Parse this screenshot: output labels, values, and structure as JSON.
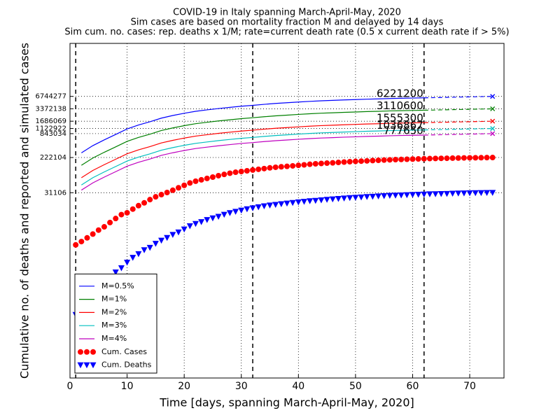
{
  "chart_data": {
    "type": "line",
    "title": [
      "COVID-19 in Italy spanning March-April-May, 2020",
      "Sim cases are based on mortality fraction M and delayed by 14 days",
      "Sim cum. no. cases: rep. deaths x 1/M; rate=current death rate (0.5 x current death rate if > 5%)"
    ],
    "xlabel": "Time [days, spanning March-April-May, 2020]",
    "ylabel": "Cumulative no. of deaths and reported and simulated cases",
    "xlim": [
      0,
      76
    ],
    "xticks": [
      0,
      10,
      20,
      30,
      40,
      50,
      60,
      70
    ],
    "ylim": [
      1,
      130000000
    ],
    "yscale": "log",
    "yticks": [
      31106,
      222104,
      843034,
      1122922,
      1686069,
      3372138,
      6744277
    ],
    "grid": true,
    "legend": "lower left",
    "vlines": [
      1,
      32,
      62
    ],
    "series": [
      {
        "name": "M=0.5%",
        "color": "#0000ff",
        "x": [
          2,
          4,
          6,
          8,
          10,
          12,
          14,
          16,
          18,
          20,
          22,
          24,
          26,
          28,
          30,
          32,
          34,
          36,
          38,
          40,
          42,
          44,
          46,
          48,
          50,
          52,
          54,
          56,
          58,
          60,
          62
        ],
        "values": [
          288200,
          431600,
          595600,
          806400,
          1095200,
          1364000,
          1633000,
          2004600,
          2318200,
          2631000,
          2936200,
          3177400,
          3425400,
          3655800,
          3893600,
          4093000,
          4329000,
          4549000,
          4732000,
          4929600,
          5109800,
          5276800,
          5395400,
          5536400,
          5647200,
          5776800,
          5863000,
          5991600,
          6079000,
          6147800,
          6221200
        ],
        "projection": {
          "x": [
            62,
            74
          ],
          "values": [
            6221200,
            6744277
          ]
        }
      },
      {
        "name": "M=1%",
        "color": "#008000",
        "x": [
          2,
          4,
          6,
          8,
          10,
          12,
          14,
          16,
          18,
          20,
          22,
          24,
          26,
          28,
          30,
          32,
          34,
          36,
          38,
          40,
          42,
          44,
          46,
          48,
          50,
          52,
          54,
          56,
          58,
          60,
          62
        ],
        "values": [
          144100,
          215800,
          297800,
          403200,
          547600,
          682000,
          816500,
          1002300,
          1159100,
          1315500,
          1468100,
          1588700,
          1712700,
          1827900,
          1946800,
          2046500,
          2164500,
          2274500,
          2366000,
          2464800,
          2554900,
          2638400,
          2697700,
          2768200,
          2823600,
          2888400,
          2931500,
          2995800,
          3039500,
          3073900,
          3110600
        ],
        "projection": {
          "x": [
            62,
            74
          ],
          "values": [
            3110600,
            3372138
          ]
        }
      },
      {
        "name": "M=2%",
        "color": "#ff0000",
        "x": [
          2,
          4,
          6,
          8,
          10,
          12,
          14,
          16,
          18,
          20,
          22,
          24,
          26,
          28,
          30,
          32,
          34,
          36,
          38,
          40,
          42,
          44,
          46,
          48,
          50,
          52,
          54,
          56,
          58,
          60,
          62
        ],
        "values": [
          72050,
          107900,
          148900,
          201600,
          273800,
          341000,
          408250,
          501150,
          579550,
          657750,
          734050,
          794350,
          856350,
          913950,
          973400,
          1023250,
          1082250,
          1137250,
          1183000,
          1232400,
          1277450,
          1319200,
          1348850,
          1384100,
          1411800,
          1444200,
          1465750,
          1497900,
          1519750,
          1536950,
          1555300
        ],
        "projection": {
          "x": [
            62,
            74
          ],
          "values": [
            1555300,
            1686069
          ]
        }
      },
      {
        "name": "M=3%",
        "color": "#00bfbf",
        "x": [
          2,
          4,
          6,
          8,
          10,
          12,
          14,
          16,
          18,
          20,
          22,
          24,
          26,
          28,
          30,
          32,
          34,
          36,
          38,
          40,
          42,
          44,
          46,
          48,
          50,
          52,
          54,
          56,
          58,
          60,
          62
        ],
        "values": [
          48033,
          71933,
          99267,
          134400,
          182533,
          227333,
          272167,
          334100,
          386367,
          438500,
          489367,
          529567,
          570900,
          609300,
          648933,
          682167,
          721500,
          758167,
          788667,
          821600,
          851633,
          879467,
          899233,
          922733,
          941200,
          962800,
          977167,
          998600,
          1013167,
          1024633,
          1036867
        ],
        "projection": {
          "x": [
            62,
            74
          ],
          "values": [
            1036867,
            1122922
          ]
        }
      },
      {
        "name": "M=4%",
        "color": "#bf00bf",
        "x": [
          2,
          4,
          6,
          8,
          10,
          12,
          14,
          16,
          18,
          20,
          22,
          24,
          26,
          28,
          30,
          32,
          34,
          36,
          38,
          40,
          42,
          44,
          46,
          48,
          50,
          52,
          54,
          56,
          58,
          60,
          62
        ],
        "values": [
          36025,
          53950,
          74450,
          100800,
          136900,
          170500,
          204125,
          250575,
          289775,
          328875,
          367025,
          397175,
          428175,
          456975,
          486700,
          511625,
          541125,
          568625,
          591500,
          616200,
          638725,
          659600,
          674425,
          692050,
          705900,
          722100,
          732875,
          748950,
          759875,
          768475,
          777650
        ],
        "projection": {
          "x": [
            62,
            74
          ],
          "values": [
            777650,
            843034
          ]
        }
      },
      {
        "name": "Cum. Cases",
        "color": "#ff0000",
        "marker": "circle",
        "x": [
          1,
          2,
          3,
          4,
          5,
          6,
          7,
          8,
          9,
          10,
          11,
          12,
          13,
          14,
          15,
          16,
          17,
          18,
          19,
          20,
          21,
          22,
          23,
          24,
          25,
          26,
          27,
          28,
          29,
          30,
          31,
          32,
          33,
          34,
          35,
          36,
          37,
          38,
          39,
          40,
          41,
          42,
          43,
          44,
          45,
          46,
          47,
          48,
          49,
          50,
          51,
          52,
          53,
          54,
          55,
          56,
          57,
          58,
          59,
          60,
          61,
          62,
          63,
          64,
          65,
          66,
          67,
          68,
          69,
          70,
          71,
          72,
          73,
          74
        ],
        "values": [
          1694,
          2036,
          2502,
          3089,
          3858,
          4636,
          5883,
          7375,
          9172,
          10149,
          12462,
          15113,
          17660,
          21157,
          24747,
          27980,
          31506,
          35713,
          41035,
          47021,
          53578,
          59138,
          63927,
          69176,
          74386,
          80539,
          86498,
          92472,
          97689,
          101739,
          105792,
          110574,
          115242,
          119827,
          124632,
          128948,
          132547,
          135586,
          139422,
          143626,
          147577,
          152271,
          156363,
          159516,
          162488,
          165155,
          168941,
          172434,
          175925,
          178972,
          181228,
          183957,
          187327,
          189973,
          192994,
          195351,
          197675,
          199414,
          201505,
          203591,
          205463,
          207428,
          209328,
          210717,
          211938,
          213013,
          214457,
          215858,
          217185,
          218268,
          219070,
          219814,
          221216,
          222104
        ]
      },
      {
        "name": "Cum. Deaths",
        "color": "#0000ff",
        "marker": "triangle-down",
        "x": [
          1,
          2,
          3,
          4,
          5,
          6,
          7,
          8,
          9,
          10,
          11,
          12,
          13,
          14,
          15,
          16,
          17,
          18,
          19,
          20,
          21,
          22,
          23,
          24,
          25,
          26,
          27,
          28,
          29,
          30,
          31,
          32,
          33,
          34,
          35,
          36,
          37,
          38,
          39,
          40,
          41,
          42,
          43,
          44,
          45,
          46,
          47,
          48,
          49,
          50,
          51,
          52,
          53,
          54,
          55,
          56,
          57,
          58,
          59,
          60,
          61,
          62,
          63,
          64,
          65,
          66,
          67,
          68,
          69,
          70,
          71,
          72,
          73,
          74
        ],
        "values": [
          34,
          52,
          79,
          107,
          148,
          197,
          233,
          366,
          463,
          631,
          827,
          1016,
          1266,
          1441,
          1809,
          2158,
          2503,
          2978,
          3405,
          4032,
          4825,
          5476,
          6077,
          6820,
          7503,
          8165,
          9134,
          10023,
          10779,
          11591,
          12428,
          13155,
          13915,
          14681,
          15362,
          15887,
          16523,
          17127,
          17669,
          18279,
          18849,
          19468,
          19899,
          20465,
          21067,
          21645,
          22170,
          22745,
          23227,
          23660,
          24114,
          24648,
          25085,
          25549,
          25969,
          26384,
          26644,
          26977,
          27359,
          27682,
          27967,
          28236,
          28710,
          28884,
          29079,
          29315,
          29684,
          29958,
          30201,
          30395,
          30560,
          30739,
          30911,
          31106
        ]
      }
    ]
  }
}
